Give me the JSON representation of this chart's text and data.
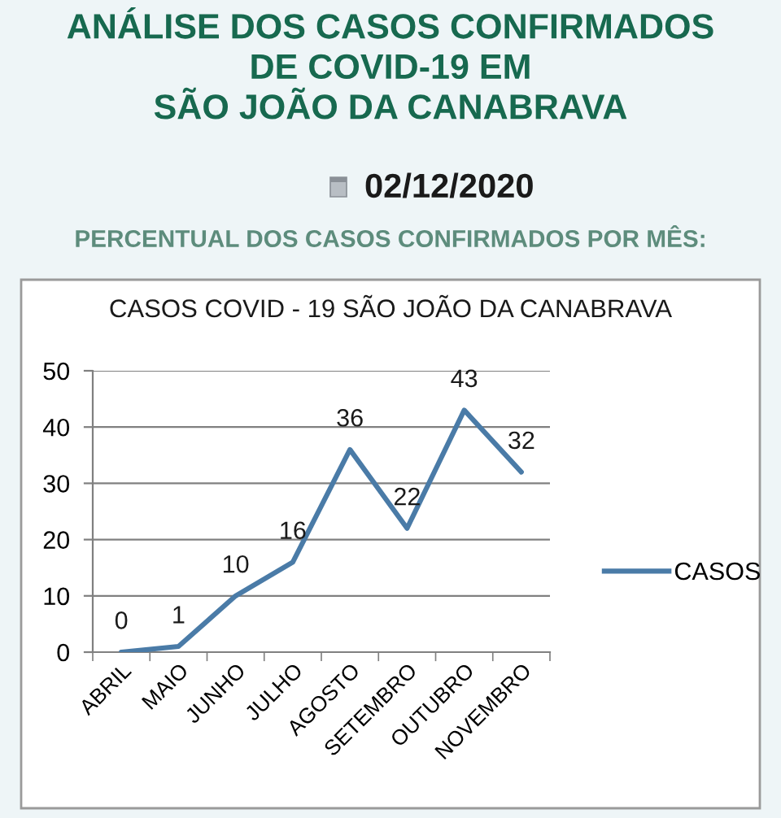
{
  "chart_data": {
    "type": "line",
    "title": "ANÁLISE DOS CASOS CONFIRMADOS\nDE COVID-19 EM\nSÃO JOÃO DA CANABRAVA",
    "subtitle": "PERCENTUAL DOS CASOS CONFIRMADOS POR MÊS:",
    "annotations": [
      "02/12/2020",
      "CASOS COVID - 19 SÃO JOÃO DA CANABRAVA"
    ],
    "categories": [
      "ABRIL",
      "MAIO",
      "JUNHO",
      "JULHO",
      "AGOSTO",
      "SETEMBRO",
      "OUTUBRO",
      "NOVEMBRO"
    ],
    "series": [
      {
        "name": "CASOS",
        "color": "#4a7ba7",
        "values": [
          0,
          1,
          10,
          16,
          36,
          22,
          43,
          32
        ]
      }
    ],
    "ylim": [
      0,
      50
    ],
    "yticks": [
      0,
      10,
      20,
      30,
      40,
      50
    ],
    "grid": "y",
    "legend": "right",
    "data_labels": true,
    "marker": "none",
    "line_style": "solid"
  }
}
